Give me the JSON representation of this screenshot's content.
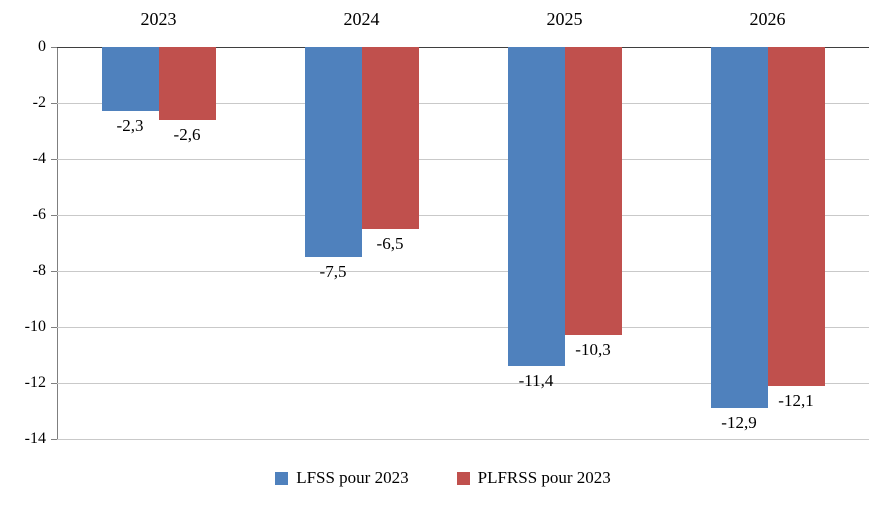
{
  "chart_data": {
    "type": "bar",
    "title": "",
    "xlabel": "",
    "ylabel": "",
    "categories": [
      "2023",
      "2024",
      "2025",
      "2026"
    ],
    "series": [
      {
        "name": "LFSS pour 2023",
        "color": "#4F81BD",
        "values": [
          -2.3,
          -7.5,
          -11.4,
          -12.9
        ],
        "labels": [
          "-2,3",
          "-7,5",
          "-11,4",
          "-12,9"
        ]
      },
      {
        "name": "PLFRSS pour 2023",
        "color": "#C0504D",
        "values": [
          -2.6,
          -6.5,
          -10.3,
          -12.1
        ],
        "labels": [
          "-2,6",
          "-6,5",
          "-10,3",
          "-12,1"
        ]
      }
    ],
    "ylim": [
      -14,
      0
    ],
    "yticks": [
      0,
      -2,
      -4,
      -6,
      -8,
      -10,
      -12,
      -14
    ],
    "ytick_labels": [
      "0",
      "-2",
      "-4",
      "-6",
      "-8",
      "-10",
      "-12",
      "-14"
    ],
    "grid": true,
    "legend_position": "bottom"
  }
}
